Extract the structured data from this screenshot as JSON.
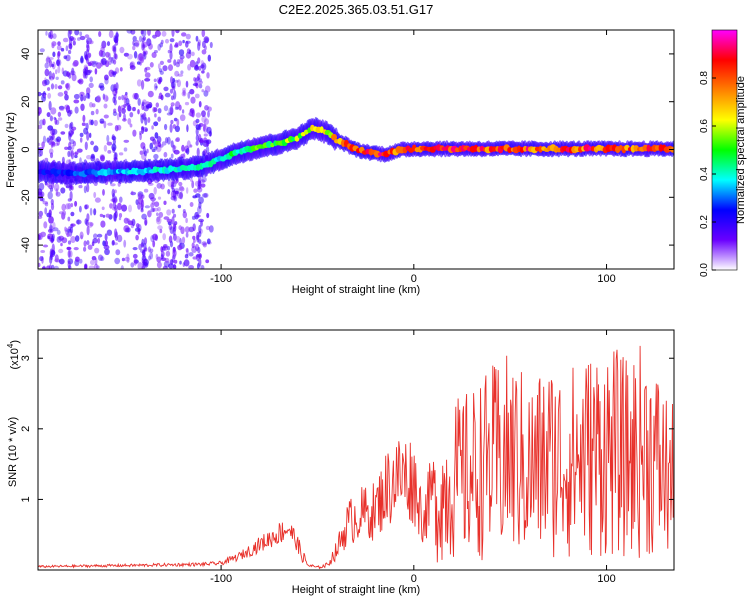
{
  "title": "C2E2.2025.365.03.51.G17",
  "chart_data": [
    {
      "type": "heatmap",
      "xlabel": "Height of straight line (km)",
      "ylabel": "Frequency (Hz)",
      "xlim": [
        -195,
        135
      ],
      "ylim": [
        -50,
        50
      ],
      "xticks": [
        -100,
        0,
        100
      ],
      "xtick_labels": [
        "-100",
        "0",
        "100"
      ],
      "yticks": [
        -40,
        -20,
        0,
        20,
        40
      ],
      "ytick_labels": [
        "-40",
        "-20",
        "0",
        "20",
        "40"
      ],
      "ridge": {
        "description": "main spectral ridge (frequency vs height)",
        "x": [
          -195,
          -180,
          -160,
          -140,
          -120,
          -110,
          -100,
          -90,
          -80,
          -70,
          -60,
          -52,
          -45,
          -40,
          -35,
          -30,
          -25,
          -20,
          -15,
          -10,
          -5,
          0,
          20,
          40,
          60,
          80,
          100,
          120,
          135
        ],
        "y": [
          -9,
          -10,
          -9.5,
          -9,
          -8,
          -7,
          -4,
          -1,
          1,
          2.5,
          5,
          9,
          7,
          4,
          2,
          0,
          -1,
          -1.5,
          -2,
          -1,
          0,
          0.3,
          0.3,
          0.3,
          0.3,
          0.3,
          0.3,
          0.3,
          0.3
        ],
        "amplitude": [
          0.25,
          0.3,
          0.35,
          0.4,
          0.45,
          0.45,
          0.45,
          0.5,
          0.55,
          0.6,
          0.6,
          0.65,
          0.7,
          0.8,
          0.85,
          0.9,
          0.92,
          0.95,
          0.95,
          0.9,
          0.9,
          0.9,
          0.9,
          0.9,
          0.9,
          0.9,
          0.9,
          0.9,
          0.9
        ]
      },
      "colorbar": {
        "label": "Normalized spectral amplitude",
        "range": [
          0.0,
          1.0
        ],
        "ticks": [
          0.0,
          0.2,
          0.4,
          0.6,
          0.8
        ],
        "tick_labels": [
          "0.0",
          "0.2",
          "0.4",
          "0.6",
          "0.8"
        ],
        "colors": [
          "#ffffff",
          "#6a00ff",
          "#0000ff",
          "#00ffff",
          "#00ff00",
          "#ffff00",
          "#ff8000",
          "#ff0000",
          "#ff00ff"
        ]
      }
    },
    {
      "type": "line",
      "xlabel": "Height of straight line (km)",
      "ylabel": "SNR (10 * v/v)",
      "multiplier": "(x10",
      "multiplier_exp": "4",
      "multiplier_close": ")",
      "xlim": [
        -195,
        135
      ],
      "ylim": [
        0,
        3.4
      ],
      "xticks": [
        -100,
        0,
        100
      ],
      "xtick_labels": [
        "-100",
        "0",
        "100"
      ],
      "yticks": [
        1,
        2,
        3
      ],
      "ytick_labels": [
        "1",
        "2",
        "3"
      ],
      "line_color": "#e8302a",
      "envelope": {
        "x": [
          -195,
          -150,
          -110,
          -100,
          -90,
          -80,
          -70,
          -65,
          -60,
          -55,
          -50,
          -45,
          -40,
          -35,
          -30,
          -25,
          -20,
          -15,
          -10,
          -5,
          0,
          5,
          10,
          15,
          20,
          30,
          40,
          50,
          60,
          70,
          80,
          90,
          100,
          110,
          120,
          135
        ],
        "y": [
          0.06,
          0.08,
          0.1,
          0.12,
          0.25,
          0.45,
          0.65,
          0.75,
          0.45,
          0.1,
          0.05,
          0.1,
          0.4,
          0.9,
          1.1,
          1.15,
          1.2,
          1.6,
          1.85,
          1.9,
          1.8,
          1.0,
          1.7,
          2.0,
          2.4,
          2.6,
          2.9,
          3.1,
          2.7,
          3.0,
          2.9,
          3.1,
          3.3,
          3.0,
          3.3,
          2.3
        ]
      }
    }
  ]
}
